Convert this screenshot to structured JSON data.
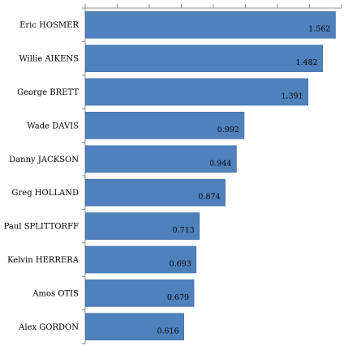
{
  "chart_data": {
    "type": "bar",
    "orientation": "horizontal",
    "categories": [
      "Eric HOSMER",
      "Willie AIKENS",
      "George BRETT",
      "Wade DAVIS",
      "Danny JACKSON",
      "Greg HOLLAND",
      "Paul SPLITTORFF",
      "Kelvin HERRERA",
      "Amos OTIS",
      "Alex GORDON"
    ],
    "values": [
      1.562,
      1.482,
      1.391,
      0.992,
      0.944,
      0.874,
      0.713,
      0.693,
      0.679,
      0.616
    ],
    "value_labels": [
      "1.562",
      "1.482",
      "1.391",
      "0.992",
      "0.944",
      "0.874",
      "0.713",
      "0.693",
      "0.679",
      "0.616"
    ],
    "title": "",
    "xlabel": "",
    "ylabel": "",
    "xlim": [
      0,
      1.6
    ],
    "grid": false,
    "legend": "none",
    "bar_color": "#4F81BD",
    "bar_edge_color": "#3A6AA5",
    "axis_color": "#8C8C8C"
  }
}
